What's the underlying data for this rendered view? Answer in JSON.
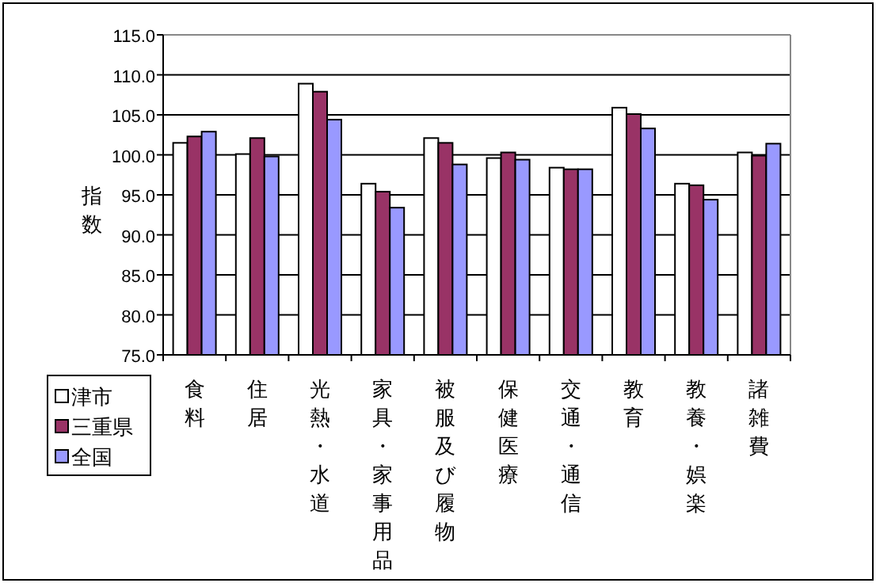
{
  "chart_data": {
    "type": "bar",
    "ylabel": "指数",
    "categories": [
      "食料",
      "住居",
      "光熱・水道",
      "家具・家事用品",
      "被服及び履物",
      "保健医療",
      "交通・通信",
      "教育",
      "教養・娯楽",
      "諸雑費"
    ],
    "series": [
      {
        "name": "津市",
        "color": "#ffffff",
        "values": [
          101.5,
          100.1,
          108.9,
          96.4,
          102.1,
          99.6,
          98.4,
          105.9,
          96.4,
          100.3
        ]
      },
      {
        "name": "三重県",
        "color": "#993366",
        "values": [
          102.3,
          102.1,
          107.9,
          95.4,
          101.5,
          100.3,
          98.2,
          105.1,
          96.2,
          99.9
        ]
      },
      {
        "name": "全国",
        "color": "#9999ff",
        "values": [
          102.9,
          99.8,
          104.4,
          93.4,
          98.8,
          99.4,
          98.2,
          103.3,
          94.4,
          101.4
        ]
      }
    ],
    "ylim": [
      75,
      115
    ],
    "yticks": [
      {
        "value": 75,
        "label": "75.0"
      },
      {
        "value": 80,
        "label": "80.0"
      },
      {
        "value": 85,
        "label": "85.0"
      },
      {
        "value": 90,
        "label": "90.0"
      },
      {
        "value": 95,
        "label": "95.0"
      },
      {
        "value": 100,
        "label": "100.0"
      },
      {
        "value": 105,
        "label": "105.0"
      },
      {
        "value": 110,
        "label": "110.0"
      },
      {
        "value": 115,
        "label": "115.0"
      }
    ],
    "grid": "y",
    "legend": "bottom left"
  }
}
